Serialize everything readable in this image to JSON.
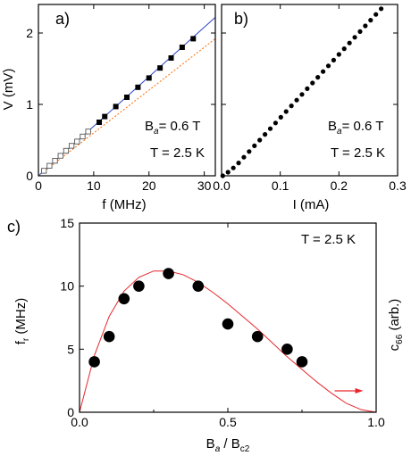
{
  "chart_data": [
    {
      "panel": "a)",
      "type": "scatter",
      "xlabel": "f (MHz)",
      "ylabel": "V (mV)",
      "xlim": [
        0,
        32
      ],
      "ylim": [
        0,
        2.4
      ],
      "xticks": [
        "0",
        "10",
        "20",
        "30"
      ],
      "yticks": [
        "0",
        "1",
        "2"
      ],
      "annotations": [
        "B_a = 0.6 T",
        "T = 2.5 K"
      ],
      "series": [
        {
          "marker": "filled-square",
          "color": "#000000",
          "x": [
            11,
            12,
            14,
            16,
            18,
            20,
            22,
            24,
            26,
            28
          ],
          "y": [
            0.75,
            0.83,
            0.97,
            1.1,
            1.24,
            1.37,
            1.51,
            1.65,
            1.8,
            1.92
          ]
        },
        {
          "marker": "open-square",
          "color": "#555555",
          "x": [
            1,
            2,
            3,
            4,
            5,
            6,
            7,
            8,
            9
          ],
          "y": [
            0.07,
            0.14,
            0.21,
            0.28,
            0.35,
            0.42,
            0.48,
            0.55,
            0.62
          ]
        },
        {
          "style": "line",
          "color": "#2b45c8",
          "x": [
            0,
            32
          ],
          "y": [
            0,
            2.22
          ]
        },
        {
          "style": "dotted-line",
          "color": "#ff6a00",
          "x": [
            0,
            32
          ],
          "y": [
            0,
            1.92
          ]
        }
      ]
    },
    {
      "panel": "b)",
      "type": "scatter",
      "xlabel": "I (mA)",
      "xlim": [
        0,
        0.3
      ],
      "ylim": [
        0,
        2.4
      ],
      "xticks": [
        "0.0",
        "0.1",
        "0.2",
        "0.3"
      ],
      "annotations": [
        "B_a = 0.6 T",
        "T = 2.5 K"
      ],
      "series": [
        {
          "marker": "filled-circle",
          "color": "#000000",
          "x": [
            0.002,
            0.011,
            0.02,
            0.029,
            0.038,
            0.047,
            0.056,
            0.065,
            0.074,
            0.083,
            0.092,
            0.101,
            0.11,
            0.119,
            0.128,
            0.137,
            0.146,
            0.155,
            0.164,
            0.173,
            0.182,
            0.191,
            0.2,
            0.209,
            0.218,
            0.227,
            0.236,
            0.245,
            0.254,
            0.263,
            0.272
          ],
          "y": [
            0.0,
            0.05,
            0.11,
            0.18,
            0.26,
            0.34,
            0.42,
            0.5,
            0.58,
            0.66,
            0.74,
            0.82,
            0.9,
            0.98,
            1.06,
            1.14,
            1.22,
            1.3,
            1.38,
            1.46,
            1.54,
            1.62,
            1.7,
            1.78,
            1.86,
            1.94,
            2.02,
            2.1,
            2.18,
            2.26,
            2.34
          ]
        }
      ]
    },
    {
      "panel": "c)",
      "type": "scatter",
      "xlabel": "B_a / B_c2",
      "ylabel": "f_r (MHz)",
      "ylabel_right": "c_66 (arb.)",
      "xlim": [
        0,
        1.0
      ],
      "ylim": [
        0,
        15
      ],
      "xticks": [
        "0.0",
        "0.5",
        "1.0"
      ],
      "yticks": [
        "0",
        "5",
        "10",
        "15"
      ],
      "annotations": [
        "T = 2.5 K"
      ],
      "arrow_color": "#e8262b",
      "series": [
        {
          "marker": "filled-circle",
          "color": "#000000",
          "x": [
            0.05,
            0.1,
            0.15,
            0.2,
            0.3,
            0.4,
            0.5,
            0.6,
            0.7,
            0.75
          ],
          "y": [
            4,
            6,
            9,
            10,
            11,
            10,
            7,
            6,
            5,
            4
          ]
        },
        {
          "style": "line",
          "color": "#e8262b",
          "axis": "right",
          "x": [
            0,
            0.05,
            0.1,
            0.15,
            0.2,
            0.25,
            0.3,
            0.35,
            0.4,
            0.45,
            0.5,
            0.55,
            0.6,
            0.65,
            0.7,
            0.75,
            0.8,
            0.85,
            0.9,
            0.95,
            1.0
          ],
          "y": [
            0,
            4.5,
            7.6,
            9.6,
            10.7,
            11.2,
            11.2,
            10.9,
            10.3,
            9.5,
            8.6,
            7.6,
            6.6,
            5.5,
            4.4,
            3.4,
            2.4,
            1.5,
            0.7,
            0.2,
            0
          ]
        }
      ]
    }
  ],
  "text": {
    "a": {
      "label": "a)",
      "xlabel": "f (MHz)",
      "ylabel": "V (mV)",
      "xticks": [
        "0",
        "10",
        "20",
        "30"
      ],
      "yticks": [
        "0",
        "1",
        "2"
      ],
      "ba_sym": "B",
      "ba_sub": "a",
      "ba_val": "= 0.6 T",
      "temp": "T = 2.5 K"
    },
    "b": {
      "label": "b)",
      "xlabel": "I (mA)",
      "xticks": [
        "0.0",
        "0.1",
        "0.2",
        "0.3"
      ],
      "ba_sym": "B",
      "ba_sub": "a",
      "ba_val": "= 0.6 T",
      "temp": "T = 2.5 K"
    },
    "c": {
      "label": "c)",
      "xl_main": "B",
      "xl_sub1": "a",
      "xl_mid": " / B",
      "xl_sub2": "c2",
      "yl_main": "f",
      "yl_sub": "r",
      "yl_rest": " (MHz)",
      "yr_main": "c",
      "yr_sub": "66",
      "yr_rest": " (arb.)",
      "xticks": [
        "0.0",
        "0.5",
        "1.0"
      ],
      "yticks": [
        "0",
        "5",
        "10",
        "15"
      ],
      "temp": "T = 2.5 K"
    }
  }
}
